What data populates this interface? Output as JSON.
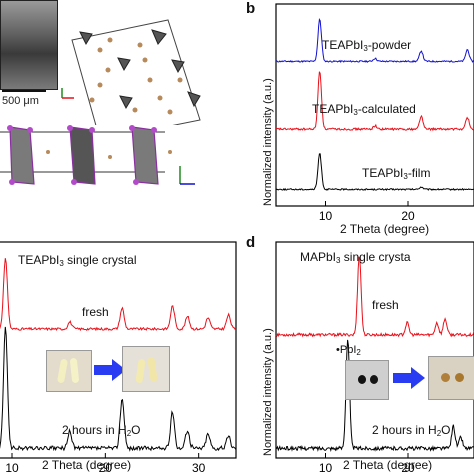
{
  "panels": {
    "a": {
      "scale_bar": "500 μm"
    },
    "b": {
      "letter": "b"
    },
    "c": {
      "title_main": "TEAPbI",
      "title_sub": "3",
      "title_tail": " single crystal"
    },
    "d": {
      "letter": "d",
      "title_main": "MAPbI",
      "title_sub": "3",
      "title_tail": " single crysta"
    }
  },
  "colors": {
    "black": "#000000",
    "red": "#e8101a",
    "blue": "#1010d0",
    "arrow": "#2a3cf2"
  },
  "chart_data": [
    {
      "panel": "b",
      "type": "line",
      "xlabel": "2 Theta (degree)",
      "ylabel": "Normalized intensity (a.u.)",
      "xlim": [
        4,
        28
      ],
      "xticks": [
        10,
        20
      ],
      "series": [
        {
          "name": "TEAPbI3-powder",
          "label_main": "TEAPbI",
          "label_sub": "3",
          "label_tail": "-powder",
          "color": "#1010d0",
          "peaks": [
            [
              9.3,
              1.0
            ],
            [
              16.0,
              0.07
            ],
            [
              21.6,
              0.25
            ],
            [
              27.2,
              0.28
            ]
          ]
        },
        {
          "name": "TEAPbI3-calculated",
          "label_main": "TEAPbI",
          "label_sub": "3",
          "label_tail": "-calculated",
          "color": "#e8101a",
          "peaks": [
            [
              9.3,
              1.0
            ],
            [
              16.0,
              0.06
            ],
            [
              21.6,
              0.22
            ],
            [
              27.2,
              0.2
            ]
          ]
        },
        {
          "name": "TEAPbI3-film",
          "label_main": "TEAPbI",
          "label_sub": "3",
          "label_tail": "-film",
          "color": "#000000",
          "peaks": [
            [
              9.3,
              0.9
            ],
            [
              21.6,
              0.06
            ]
          ]
        }
      ]
    },
    {
      "panel": "c",
      "type": "line",
      "xlabel": "2 Theta (degree)",
      "xlim": [
        8.5,
        34
      ],
      "xticks": [
        10,
        20,
        30
      ],
      "series": [
        {
          "name": "fresh",
          "color": "#e8101a",
          "peaks": [
            [
              9.3,
              1.0
            ],
            [
              16.2,
              0.1
            ],
            [
              21.8,
              0.3
            ],
            [
              27.2,
              0.33
            ],
            [
              28.8,
              0.18
            ],
            [
              31.0,
              0.16
            ],
            [
              33.2,
              0.2
            ]
          ]
        },
        {
          "name": "2 hours in H2O",
          "label_main": "2 hours in H",
          "label_sub": "2",
          "label_tail": "O",
          "color": "#000000",
          "peaks": [
            [
              9.3,
              1.0
            ],
            [
              16.2,
              0.14
            ],
            [
              21.8,
              0.42
            ],
            [
              27.2,
              0.3
            ],
            [
              28.8,
              0.15
            ],
            [
              31.0,
              0.12
            ],
            [
              33.2,
              0.1
            ]
          ]
        }
      ]
    },
    {
      "panel": "d",
      "type": "line",
      "ylabel": "Normalized intensity (a.u.)",
      "xlabel": "2 Theta (degree)",
      "xlim": [
        4,
        28
      ],
      "xticks": [
        10,
        20
      ],
      "series": [
        {
          "name": "fresh",
          "color": "#e8101a",
          "peaks": [
            [
              14.1,
              1.0
            ],
            [
              19.9,
              0.15
            ],
            [
              23.5,
              0.15
            ],
            [
              24.5,
              0.2
            ],
            [
              28.4,
              0.25
            ]
          ]
        },
        {
          "name": "2 hours in H2O",
          "label_main": "2 hours in H",
          "label_sub": "2",
          "label_tail": "O",
          "color": "#000000",
          "peaks": [
            [
              12.7,
              1.0
            ],
            [
              25.5,
              0.2
            ],
            [
              26.4,
              0.1
            ]
          ]
        }
      ],
      "annotation": {
        "main": "PbI",
        "sub": "2"
      }
    }
  ]
}
